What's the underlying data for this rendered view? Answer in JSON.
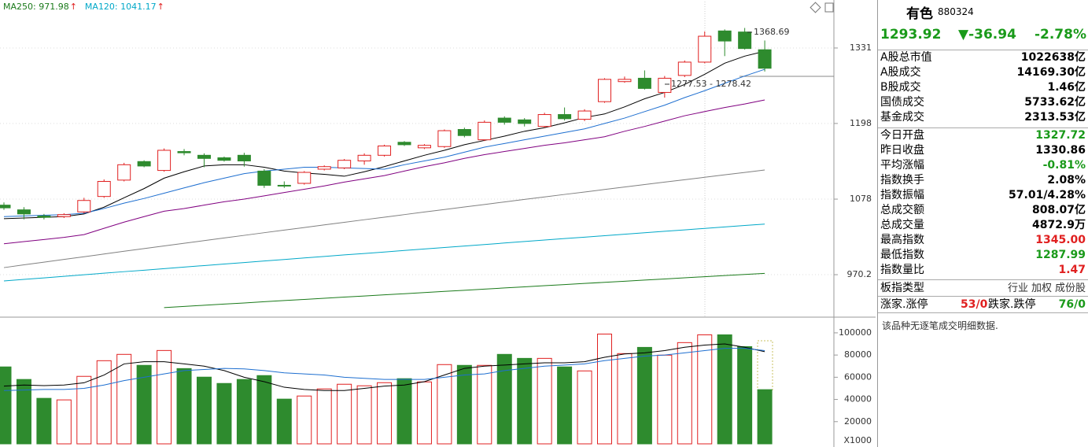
{
  "legend": [
    {
      "label": "MA250: 971.98",
      "arrow": "↑",
      "color": "#1a7a1a"
    },
    {
      "label": "MA120: 1041.17",
      "arrow": "↑",
      "color": "#00a8c8"
    }
  ],
  "annotations": [
    {
      "text": "1368.69"
    },
    {
      "text": "1277.53 - 1278.42"
    }
  ],
  "chart_data": [
    {
      "type": "candlestick",
      "ylog": true,
      "ylim": [
        915.4,
        1420
      ],
      "yticks": [
        970.2,
        1078,
        1198,
        1331
      ],
      "grid": true,
      "up_color": "#e02020",
      "down_color": "#2e8b2e",
      "open": [
        1069,
        1062,
        1053,
        1052,
        1059,
        1082,
        1107,
        1136,
        1122,
        1152,
        1146,
        1142,
        1146,
        1121,
        1099,
        1102,
        1124,
        1126,
        1137,
        1146,
        1167,
        1158,
        1160,
        1188,
        1171,
        1207,
        1204,
        1193,
        1213,
        1205,
        1235,
        1270,
        1276,
        1251,
        1281,
        1305,
        1363,
        1361,
        1327.72
      ],
      "close": [
        1065,
        1056,
        1051,
        1055,
        1076,
        1105,
        1131,
        1129,
        1154,
        1150,
        1141,
        1138,
        1137,
        1099,
        1098,
        1119,
        1128,
        1138,
        1146,
        1161,
        1163,
        1162,
        1186,
        1178,
        1200,
        1200,
        1198,
        1213,
        1206,
        1219,
        1274,
        1274,
        1258,
        1276,
        1305,
        1353,
        1344,
        1330,
        1293.92
      ],
      "high": [
        1073,
        1066,
        1056,
        1057,
        1080,
        1108,
        1134,
        1138,
        1157,
        1156,
        1149,
        1144,
        1150,
        1124,
        1105,
        1121,
        1130,
        1140,
        1149,
        1163,
        1169,
        1164,
        1188,
        1191,
        1203,
        1210,
        1207,
        1216,
        1225,
        1222,
        1276,
        1279,
        1290,
        1280,
        1308,
        1362,
        1366,
        1368.69,
        1345
      ],
      "low": [
        1062,
        1048,
        1048,
        1050,
        1057,
        1080,
        1105,
        1127,
        1120,
        1146,
        1127,
        1136,
        1128,
        1095,
        1095,
        1100,
        1122,
        1124,
        1131,
        1144,
        1161,
        1156,
        1158,
        1175,
        1169,
        1196,
        1193,
        1191,
        1203,
        1202,
        1233,
        1268,
        1256,
        1242,
        1278,
        1303,
        1316,
        1328,
        1287.99
      ],
      "series": [
        {
          "color": "#000000",
          "values": [
            1049,
            1050,
            1051,
            1052,
            1056,
            1066,
            1080,
            1094,
            1110,
            1120,
            1129,
            1131,
            1131,
            1127,
            1121,
            1118,
            1116,
            1113,
            1120,
            1128,
            1137,
            1146,
            1154,
            1163,
            1170,
            1177,
            1185,
            1191,
            1199,
            1208,
            1214,
            1226,
            1240,
            1251,
            1265,
            1283,
            1303,
            1316,
            1325
          ]
        },
        {
          "color": "#1e6fd0",
          "values": [
            1052,
            1053,
            1054,
            1055,
            1057,
            1064,
            1072,
            1079,
            1087,
            1095,
            1103,
            1110,
            1117,
            1121,
            1124,
            1127,
            1127,
            1126,
            1125,
            1124,
            1131,
            1137,
            1143,
            1151,
            1159,
            1165,
            1171,
            1177,
            1183,
            1189,
            1198,
            1207,
            1218,
            1229,
            1242,
            1254,
            1267,
            1280,
            1292
          ]
        },
        {
          "color": "#800080",
          "values": [
            1013,
            1016,
            1019,
            1022,
            1026,
            1035,
            1044,
            1052,
            1060,
            1064,
            1069,
            1074,
            1078,
            1083,
            1088,
            1093,
            1098,
            1104,
            1109,
            1114,
            1121,
            1128,
            1134,
            1141,
            1147,
            1152,
            1157,
            1162,
            1166,
            1171,
            1176,
            1185,
            1193,
            1202,
            1211,
            1218,
            1225,
            1231,
            1238
          ]
        },
        {
          "color": "#808080",
          "values": [
            979.8,
            983.6,
            987.3,
            991.1,
            994.8,
            998.6,
            1002.4,
            1006.1,
            1009.9,
            1013.6,
            1017.4,
            1021.2,
            1024.9,
            1028.7,
            1032.4,
            1036.2,
            1040,
            1043.7,
            1047.5,
            1051.2,
            1055,
            1058.8,
            1062.5,
            1066.3,
            1070,
            1073.8,
            1077.6,
            1081.3,
            1085.1,
            1088.8,
            1092.6,
            1096.4,
            1100.1,
            1103.9,
            1107.6,
            1111.4,
            1115.2,
            1118.9,
            1122.8
          ]
        },
        {
          "color": "#00a8c8",
          "values": [
            961.7,
            963.8,
            965.9,
            968,
            970.1,
            972.2,
            974.3,
            976.3,
            978.4,
            980.5,
            982.6,
            984.7,
            986.8,
            988.9,
            991,
            993.1,
            995.2,
            997.3,
            999.3,
            1001.4,
            1003.5,
            1005.6,
            1007.7,
            1009.8,
            1011.9,
            1014,
            1016.1,
            1018.2,
            1020.3,
            1022.3,
            1024.4,
            1026.5,
            1028.6,
            1030.7,
            1032.8,
            1034.9,
            1037,
            1039.1,
            1041.17
          ]
        },
        {
          "color": "#1a7a1a",
          "values": [
            null,
            null,
            null,
            null,
            null,
            null,
            null,
            null,
            926.7,
            928.2,
            929.7,
            931.2,
            932.7,
            934.3,
            935.8,
            937.3,
            938.8,
            940.3,
            941.8,
            943.3,
            944.8,
            946.3,
            947.8,
            949.3,
            950.9,
            952.4,
            953.9,
            955.4,
            956.9,
            958.4,
            959.9,
            961.4,
            962.9,
            964.4,
            966,
            967.5,
            969,
            970.5,
            971.98
          ]
        }
      ]
    },
    {
      "type": "bar",
      "ylim": [
        0,
        112000
      ],
      "yticks": [
        20000,
        40000,
        60000,
        80000,
        100000
      ],
      "unit_label": "X1000",
      "values": [
        69300,
        58000,
        41000,
        39600,
        60800,
        74900,
        80600,
        70700,
        84100,
        67800,
        60100,
        54400,
        58000,
        61500,
        40300,
        43100,
        49500,
        53700,
        52300,
        55100,
        58700,
        55800,
        71400,
        70700,
        70700,
        80600,
        77000,
        77000,
        69300,
        65700,
        98900,
        81300,
        86900,
        79900,
        91200,
        98200,
        98200,
        87600,
        48800
      ],
      "series": [
        {
          "color": "#000000",
          "values": [
            52000,
            53000,
            52500,
            53000,
            55000,
            62000,
            72000,
            74000,
            74000,
            72000,
            70000,
            66000,
            60000,
            56000,
            51000,
            49000,
            48000,
            48000,
            50000,
            52000,
            53000,
            56000,
            62000,
            68000,
            70000,
            71000,
            72000,
            73000,
            73000,
            74000,
            78000,
            81000,
            82000,
            84000,
            87000,
            89000,
            90000,
            87000,
            83000
          ]
        },
        {
          "color": "#1e6fd0",
          "values": [
            48000,
            48500,
            49000,
            49000,
            50000,
            53000,
            57000,
            60000,
            63000,
            66000,
            67000,
            68000,
            67500,
            66000,
            64000,
            63000,
            62000,
            60000,
            59000,
            58000,
            58000,
            58000,
            60000,
            62000,
            63000,
            66000,
            68000,
            70000,
            71000,
            72000,
            75000,
            77000,
            79000,
            80000,
            82000,
            84000,
            86000,
            86000,
            84000
          ]
        }
      ]
    }
  ],
  "panel": {
    "name": "有色",
    "code": "880324",
    "price": "1293.92",
    "change": "▼-36.94",
    "change_pct": "-2.78%",
    "price_color": "#1a9a1a",
    "groups": [
      [
        {
          "label": "A股总市值",
          "value": "1022638亿",
          "color": "#000"
        },
        {
          "label": "A股成交",
          "value": "14169.30亿",
          "color": "#000"
        },
        {
          "label": "B股成交",
          "value": "1.46亿",
          "color": "#000"
        },
        {
          "label": "国债成交",
          "value": "5733.62亿",
          "color": "#000"
        },
        {
          "label": "基金成交",
          "value": "2313.53亿",
          "color": "#000"
        }
      ],
      [
        {
          "label": "今日开盘",
          "value": "1327.72",
          "color": "#1a9a1a"
        },
        {
          "label": "昨日收盘",
          "value": "1330.86",
          "color": "#000"
        },
        {
          "label": "平均涨幅",
          "value": "-0.81%",
          "color": "#1a9a1a"
        },
        {
          "label": "指数换手",
          "value": "2.08%",
          "color": "#000"
        },
        {
          "label": "指数振幅",
          "value": "57.01/4.28%",
          "color": "#000"
        },
        {
          "label": "总成交额",
          "value": "808.07亿",
          "color": "#000"
        },
        {
          "label": "总成交量",
          "value": "4872.9万",
          "color": "#000"
        },
        {
          "label": "最高指数",
          "value": "1345.00",
          "color": "#e02020"
        },
        {
          "label": "最低指数",
          "value": "1287.99",
          "color": "#1a9a1a"
        },
        {
          "label": "指数量比",
          "value": "1.47",
          "color": "#e02020"
        }
      ]
    ],
    "index_type": {
      "label": "板指类型",
      "options": [
        "行业",
        "加权",
        "成份股"
      ]
    },
    "breadth": {
      "up_label": "涨家.涨停",
      "up_value": "53/0",
      "up_color": "#e02020",
      "down_label": "跌家.跌停",
      "down_value": "76/0",
      "down_color": "#1a9a1a"
    },
    "note": "该品种无逐笔成交明细数据."
  }
}
